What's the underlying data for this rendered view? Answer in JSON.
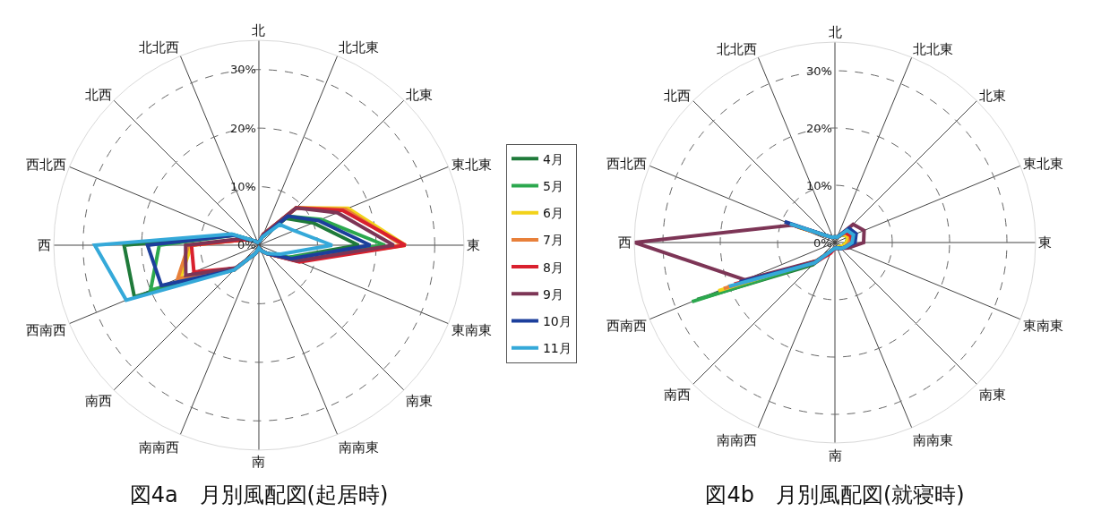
{
  "chart_data": [
    {
      "type": "radar",
      "title": "図4a　月別風配図(起居時)",
      "categories": [
        "北",
        "北北東",
        "北東",
        "東北東",
        "東",
        "東南東",
        "南東",
        "南南東",
        "南",
        "南南西",
        "南西",
        "西南西",
        "西",
        "西北西",
        "北西",
        "北北西"
      ],
      "series": [
        {
          "name": "4月",
          "color": "#1f7a3a",
          "values": [
            0.5,
            1.5,
            6.5,
            10,
            17,
            5.5,
            2,
            1,
            0.5,
            1.5,
            5.5,
            23,
            23,
            4.5,
            1,
            0.5
          ]
        },
        {
          "name": "5月",
          "color": "#2ca84e",
          "values": [
            0.5,
            1.5,
            7,
            11.5,
            21.5,
            5.5,
            2,
            1,
            0.5,
            1.5,
            5.5,
            20,
            17,
            4.5,
            1,
            0.5
          ]
        },
        {
          "name": "6月",
          "color": "#f2d21a",
          "values": [
            0.5,
            2,
            9,
            16.5,
            25,
            7,
            2,
            1,
            0.5,
            1.5,
            6,
            14.5,
            11.5,
            2.5,
            1,
            0.5
          ]
        },
        {
          "name": "7月",
          "color": "#e8803a",
          "values": [
            0.5,
            2,
            9,
            16,
            24.5,
            7,
            2,
            1,
            0.5,
            1.5,
            6,
            15,
            12,
            2.5,
            1,
            0.5
          ]
        },
        {
          "name": "8月",
          "color": "#d9202e",
          "values": [
            0.5,
            2,
            9,
            15.5,
            25,
            7.5,
            2,
            1,
            0.5,
            1.5,
            5.5,
            12,
            11.5,
            2.5,
            1,
            0.5
          ]
        },
        {
          "name": "9月",
          "color": "#7d3556",
          "values": [
            0.5,
            2,
            9,
            14.5,
            23,
            7,
            2,
            1,
            0.5,
            1.5,
            5.5,
            13.5,
            12.5,
            3,
            1,
            0.5
          ]
        },
        {
          "name": "10月",
          "color": "#1c3f9c",
          "values": [
            0.5,
            1.5,
            7,
            11,
            19,
            6,
            2,
            1,
            0.5,
            1.5,
            6,
            18,
            19,
            4.5,
            1,
            0.5
          ]
        },
        {
          "name": "11月",
          "color": "#35a9d9",
          "values": [
            0.5,
            1.5,
            5,
            6.5,
            12.5,
            4,
            2,
            1,
            0.5,
            1.5,
            6,
            24.5,
            28,
            5,
            1,
            0.5
          ]
        }
      ],
      "ylim": [
        0,
        35
      ],
      "yticks": [
        {
          "value": 0,
          "label": "0%"
        },
        {
          "value": 10,
          "label": "10%"
        },
        {
          "value": 20,
          "label": "20%"
        },
        {
          "value": 30,
          "label": "30%"
        }
      ],
      "grid": true,
      "legend": "right"
    },
    {
      "type": "radar",
      "title": "図4b　月別風配図(就寝時)",
      "categories": [
        "北",
        "北北東",
        "北東",
        "東北東",
        "東",
        "東南東",
        "南東",
        "南南東",
        "南",
        "南南西",
        "南西",
        "西南西",
        "西",
        "西北西",
        "北西",
        "北北西"
      ],
      "series": [
        {
          "color": "#1f7a3a",
          "values": [
            1,
            1,
            2,
            2.5,
            2,
            1.5,
            1,
            1,
            1,
            1.5,
            5.5,
            26,
            null,
            8,
            1.5,
            1
          ]
        },
        {
          "color": "#2ca84e",
          "values": [
            1,
            1,
            2,
            2.5,
            2,
            1.5,
            1,
            1,
            1,
            1.5,
            5,
            27,
            null,
            8.5,
            1.5,
            1
          ]
        },
        {
          "color": "#f2d21a",
          "values": [
            1,
            1,
            2,
            2.5,
            2,
            1.5,
            1,
            1,
            1,
            1.5,
            4.5,
            22,
            null,
            7,
            1.5,
            1
          ]
        },
        {
          "color": "#e8803a",
          "values": [
            1,
            1,
            2.5,
            3,
            2.5,
            2,
            1.5,
            1,
            1,
            1.5,
            4.5,
            21,
            null,
            7.5,
            1.5,
            1
          ]
        },
        {
          "color": "#d9202e",
          "values": [
            1,
            1,
            2.5,
            3,
            3,
            2,
            1.5,
            1,
            1,
            2,
            5,
            19,
            null,
            8,
            1.5,
            1
          ]
        },
        {
          "color": "#7d3556",
          "values": [
            1,
            1,
            4.5,
            5.5,
            5,
            2.5,
            1.5,
            1,
            1,
            1.5,
            4.5,
            17,
            35,
            8,
            1.5,
            1
          ]
        },
        {
          "color": "#1c3f9c",
          "values": [
            1,
            1,
            3.5,
            4,
            3.5,
            2,
            1.5,
            1,
            1,
            1.5,
            5,
            18,
            null,
            9.5,
            1.5,
            1
          ]
        },
        {
          "color": "#35a9d9",
          "values": [
            1,
            1,
            3,
            3.5,
            3,
            2,
            1.5,
            1,
            1,
            1.5,
            5,
            20,
            null,
            8.5,
            1.5,
            1
          ]
        }
      ],
      "ylim": [
        0,
        35
      ],
      "yticks": [
        {
          "value": 0,
          "label": "0%"
        },
        {
          "value": 10,
          "label": "10%"
        },
        {
          "value": 20,
          "label": "20%"
        },
        {
          "value": 30,
          "label": "30%"
        }
      ],
      "grid": true
    }
  ]
}
